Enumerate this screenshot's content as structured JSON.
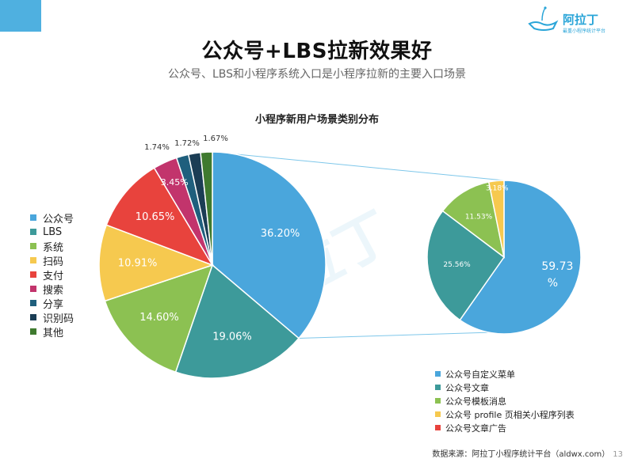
{
  "header": {
    "logo_text": "阿拉丁",
    "logo_sub": "最重小程序统计平台",
    "title": "公众号+LBS拉新效果好",
    "subtitle": "公众号、LBS和小程序系统入口是小程序拉新的主要入口场景"
  },
  "footer": {
    "source": "数据来源：阿拉丁小程序统计平台（aldwx.com）",
    "page": "13"
  },
  "colors": {
    "accent": "#4fb0e0",
    "blue": "#4aa6dc",
    "teal": "#3d9a9a",
    "green": "#8cc152",
    "yellow": "#f6c94f",
    "red": "#e8433d",
    "magenta": "#c2346c",
    "darkblue": "#1f5f7d",
    "navy": "#1b3d55",
    "darkgreen": "#3f7a2f",
    "connector": "#7ec7ea"
  },
  "watermark": "阿拉丁",
  "chart_data": [
    {
      "type": "pie",
      "title": "小程序新用户场景类别分布",
      "legend_position": "left",
      "slices": [
        {
          "label": "公众号",
          "value": 36.2,
          "value_label": "36.20%",
          "color": "#4aa6dc"
        },
        {
          "label": "LBS",
          "value": 19.06,
          "value_label": "19.06%",
          "color": "#3d9a9a"
        },
        {
          "label": "系统",
          "value": 14.6,
          "value_label": "14.60%",
          "color": "#8cc152"
        },
        {
          "label": "扫码",
          "value": 10.91,
          "value_label": "10.91%",
          "color": "#f6c94f"
        },
        {
          "label": "支付",
          "value": 10.65,
          "value_label": "10.65%",
          "color": "#e8433d"
        },
        {
          "label": "搜索",
          "value": 3.45,
          "value_label": "3.45%",
          "color": "#c2346c"
        },
        {
          "label": "分享",
          "value": 1.74,
          "value_label": "1.74%",
          "color": "#1f5f7d"
        },
        {
          "label": "识别码",
          "value": 1.72,
          "value_label": "1.72%",
          "color": "#1b3d55"
        },
        {
          "label": "其他",
          "value": 1.67,
          "value_label": "1.67%",
          "color": "#3f7a2f"
        }
      ]
    },
    {
      "type": "pie",
      "title": "",
      "legend_position": "bottom-right",
      "slices": [
        {
          "label": "公众号自定义菜单",
          "value": 59.73,
          "value_label": "59.73%",
          "color": "#4aa6dc"
        },
        {
          "label": "公众号文章",
          "value": 25.56,
          "value_label": "25.56%",
          "color": "#3d9a9a"
        },
        {
          "label": "公众号模板消息",
          "value": 11.53,
          "value_label": "11.53%",
          "color": "#8cc152"
        },
        {
          "label": "公众号 profile 页相关小程序列表",
          "value": 3.18,
          "value_label": "3.18%",
          "color": "#f6c94f"
        },
        {
          "label": "公众号文章广告",
          "value": 0,
          "value_label": "",
          "color": "#e8433d"
        }
      ]
    }
  ]
}
